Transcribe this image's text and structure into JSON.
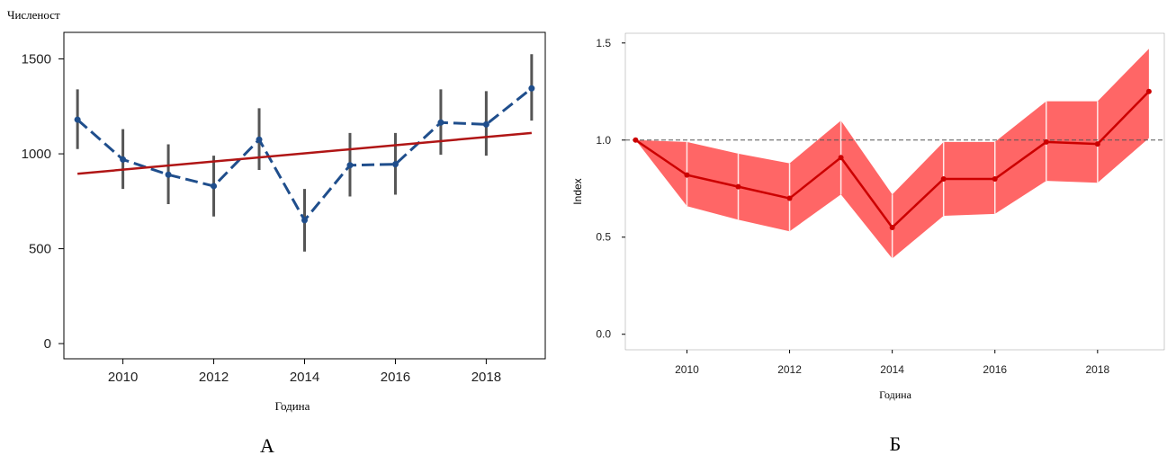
{
  "chart_data": [
    {
      "type": "line",
      "panel_label": "А",
      "ylabel": "Численост",
      "xlabel": "Година",
      "xlim": [
        2008.7,
        2019.3
      ],
      "ylim": [
        -80,
        1640
      ],
      "x_ticks": [
        2010,
        2012,
        2014,
        2016,
        2018
      ],
      "y_ticks": [
        0,
        500,
        1000,
        1500
      ],
      "colors": {
        "series": "#1f4e8c",
        "trend": "#b01515",
        "error_bar": "#555555"
      },
      "series": [
        {
          "x": [
            2009,
            2010,
            2011,
            2012,
            2013,
            2014,
            2015,
            2016,
            2017,
            2018,
            2019
          ],
          "y": [
            1180,
            970,
            890,
            830,
            1075,
            650,
            940,
            945,
            1165,
            1155,
            1345
          ],
          "lower": [
            1025,
            815,
            735,
            670,
            915,
            485,
            775,
            785,
            995,
            990,
            1175
          ],
          "upper": [
            1340,
            1130,
            1050,
            990,
            1240,
            815,
            1110,
            1110,
            1340,
            1330,
            1525
          ]
        }
      ],
      "trend": {
        "x": [
          2009,
          2019
        ],
        "y": [
          895,
          1110
        ]
      }
    },
    {
      "type": "area",
      "panel_label": "Б",
      "ylabel": "Index",
      "xlabel": "Година",
      "xlim": [
        2008.8,
        2019.3
      ],
      "ylim": [
        -0.08,
        1.55
      ],
      "x_ticks": [
        2010,
        2012,
        2014,
        2016,
        2018
      ],
      "y_ticks": [
        "0.0",
        "0.5",
        "1.0",
        "1.5"
      ],
      "reference_line": 1.0,
      "colors": {
        "line": "#cc0000",
        "band": "#ff6666",
        "reference": "#555555"
      },
      "series": [
        {
          "x": [
            2009,
            2010,
            2011,
            2012,
            2013,
            2014,
            2015,
            2016,
            2017,
            2018,
            2019
          ],
          "y": [
            1.0,
            0.82,
            0.76,
            0.7,
            0.91,
            0.55,
            0.8,
            0.8,
            0.99,
            0.98,
            1.25
          ],
          "lower": [
            1.0,
            0.66,
            0.59,
            0.53,
            0.72,
            0.39,
            0.61,
            0.62,
            0.79,
            0.78,
            1.01
          ],
          "upper": [
            1.0,
            0.99,
            0.93,
            0.88,
            1.1,
            0.72,
            0.99,
            0.99,
            1.2,
            1.2,
            1.47
          ]
        }
      ]
    }
  ]
}
